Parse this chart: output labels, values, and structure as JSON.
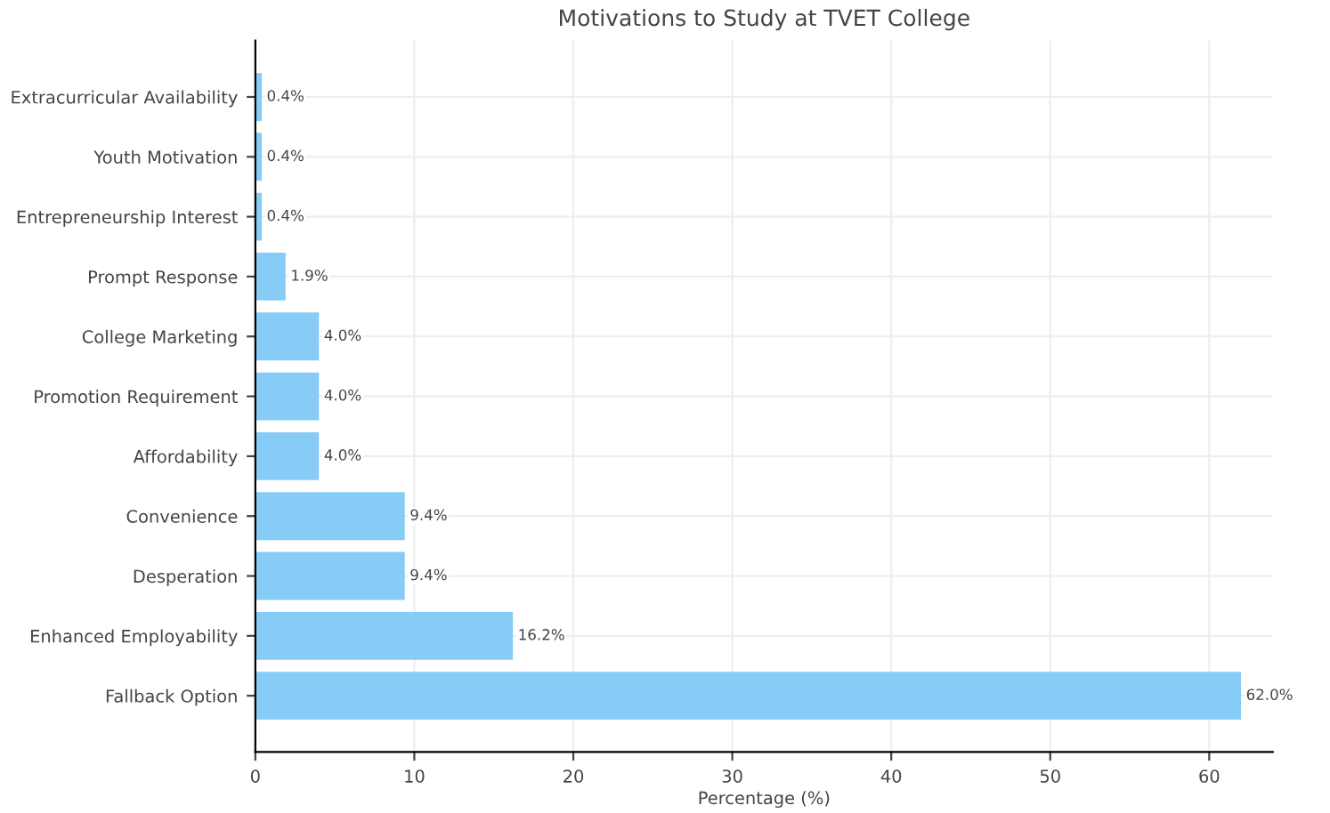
{
  "chart_data": {
    "type": "bar",
    "orientation": "horizontal",
    "title": "Motivations to Study at TVET College",
    "xlabel": "Percentage (%)",
    "categories": [
      "Extracurricular Availability",
      "Youth Motivation",
      "Entrepreneurship Interest",
      "Prompt Response",
      "College Marketing",
      "Promotion Requirement",
      "Affordability",
      "Convenience",
      "Desperation",
      "Enhanced Employability",
      "Fallback Option"
    ],
    "values": [
      0.4,
      0.4,
      0.4,
      1.9,
      4.0,
      4.0,
      4.0,
      9.4,
      9.4,
      16.2,
      62.0
    ],
    "value_labels": [
      "0.4%",
      "0.4%",
      "0.4%",
      "1.9%",
      "4.0%",
      "4.0%",
      "4.0%",
      "9.4%",
      "9.4%",
      "16.2%",
      "62.0%"
    ],
    "color": "#87ccf7",
    "xlim": [
      0,
      64
    ],
    "xticks": [
      0,
      10,
      20,
      30,
      40,
      50,
      60
    ],
    "grid": true
  }
}
